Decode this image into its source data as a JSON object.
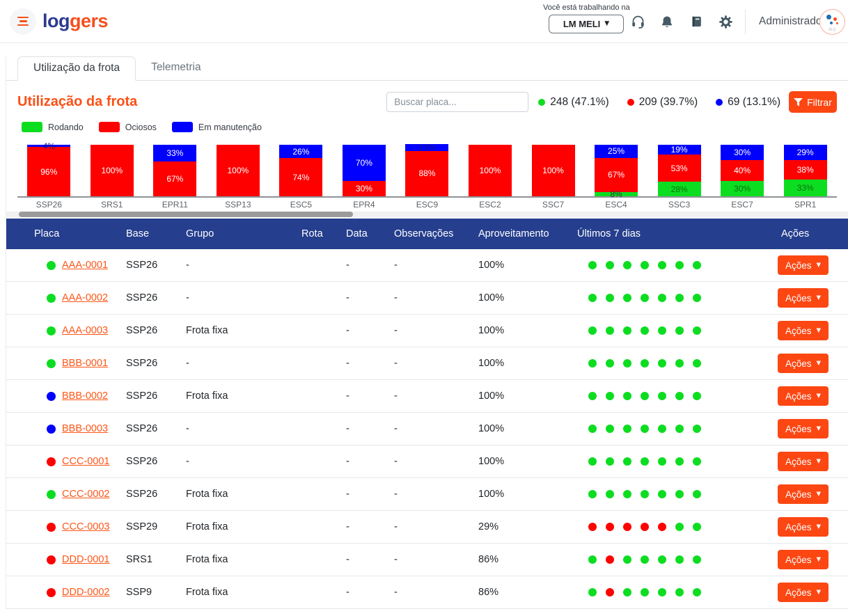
{
  "colors": {
    "green": "#0ddd21",
    "red": "#ff0000",
    "blue": "#0000ff",
    "orange": "#fc4713",
    "navy": "#253e8d"
  },
  "brand": {
    "log": "log",
    "gers": "gers"
  },
  "header": {
    "working_label": "Você está trabalhando na",
    "org": "LM MELI",
    "user": "Administrador",
    "avatar_text": "BLQ",
    "icons": [
      "headset-icon",
      "bell-icon",
      "book-icon",
      "gear-icon"
    ]
  },
  "tabs": [
    {
      "label": "Utilização da frota",
      "active": true
    },
    {
      "label": "Telemetria",
      "active": false
    }
  ],
  "page": {
    "title": "Utilização da frota",
    "search_placeholder": "Buscar placa...",
    "filter_label": "Filtrar",
    "stats": [
      {
        "color": "green",
        "label": "248 (47.1%)"
      },
      {
        "color": "red",
        "label": "209 (39.7%)"
      },
      {
        "color": "blue",
        "label": "69 (13.1%)"
      }
    ]
  },
  "legend": [
    {
      "key": "green",
      "label": "Rodando"
    },
    {
      "key": "red",
      "label": "Ociosos"
    },
    {
      "key": "blue",
      "label": "Em manutenção"
    }
  ],
  "chart_data": {
    "type": "bar",
    "stacked": true,
    "unit": "%",
    "ylim": [
      0,
      100
    ],
    "categories": [
      "SSP26",
      "SRS1",
      "EPR11",
      "SSP13",
      "ESC5",
      "EPR4",
      "ESC9",
      "ESC2",
      "SSC7",
      "ESC4",
      "SSC3",
      "ESC7",
      "SPR1"
    ],
    "series": [
      {
        "name": "Rodando",
        "color_key": "green",
        "values": [
          0,
          0,
          0,
          0,
          0,
          0,
          0,
          0,
          0,
          8,
          28,
          30,
          33
        ]
      },
      {
        "name": "Ociosos",
        "color_key": "red",
        "values": [
          96,
          100,
          67,
          100,
          74,
          30,
          88,
          100,
          100,
          67,
          53,
          40,
          38
        ]
      },
      {
        "name": "Em manutenção",
        "color_key": "blue",
        "values": [
          4,
          0,
          33,
          0,
          26,
          70,
          13,
          0,
          0,
          25,
          19,
          30,
          29
        ]
      }
    ]
  },
  "table": {
    "columns": [
      "Placa",
      "Base",
      "Grupo",
      "Rota",
      "Data",
      "Observações",
      "Aproveitamento",
      "Últimos 7 dias",
      "Ações"
    ],
    "action_label": "Ações",
    "rows": [
      {
        "status": "green",
        "placa": "AAA-0001",
        "base": "SSP26",
        "grupo": "-",
        "rota": "",
        "data": "-",
        "obs": "-",
        "aproveitamento": "100%",
        "dias": [
          "green",
          "green",
          "green",
          "green",
          "green",
          "green",
          "green"
        ]
      },
      {
        "status": "green",
        "placa": "AAA-0002",
        "base": "SSP26",
        "grupo": "-",
        "rota": "",
        "data": "-",
        "obs": "-",
        "aproveitamento": "100%",
        "dias": [
          "green",
          "green",
          "green",
          "green",
          "green",
          "green",
          "green"
        ]
      },
      {
        "status": "green",
        "placa": "AAA-0003",
        "base": "SSP26",
        "grupo": "Frota fixa",
        "rota": "",
        "data": "-",
        "obs": "-",
        "aproveitamento": "100%",
        "dias": [
          "green",
          "green",
          "green",
          "green",
          "green",
          "green",
          "green"
        ]
      },
      {
        "status": "green",
        "placa": "BBB-0001",
        "base": "SSP26",
        "grupo": "-",
        "rota": "",
        "data": "-",
        "obs": "-",
        "aproveitamento": "100%",
        "dias": [
          "green",
          "green",
          "green",
          "green",
          "green",
          "green",
          "green"
        ]
      },
      {
        "status": "blue",
        "placa": "BBB-0002",
        "base": "SSP26",
        "grupo": "Frota fixa",
        "rota": "",
        "data": "-",
        "obs": "-",
        "aproveitamento": "100%",
        "dias": [
          "green",
          "green",
          "green",
          "green",
          "green",
          "green",
          "green"
        ]
      },
      {
        "status": "blue",
        "placa": "BBB-0003",
        "base": "SSP26",
        "grupo": "-",
        "rota": "",
        "data": "-",
        "obs": "-",
        "aproveitamento": "100%",
        "dias": [
          "green",
          "green",
          "green",
          "green",
          "green",
          "green",
          "green"
        ]
      },
      {
        "status": "red",
        "placa": "CCC-0001",
        "base": "SSP26",
        "grupo": "-",
        "rota": "",
        "data": "-",
        "obs": "-",
        "aproveitamento": "100%",
        "dias": [
          "green",
          "green",
          "green",
          "green",
          "green",
          "green",
          "green"
        ]
      },
      {
        "status": "green",
        "placa": "CCC-0002",
        "base": "SSP26",
        "grupo": "Frota fixa",
        "rota": "",
        "data": "-",
        "obs": "-",
        "aproveitamento": "100%",
        "dias": [
          "green",
          "green",
          "green",
          "green",
          "green",
          "green",
          "green"
        ]
      },
      {
        "status": "red",
        "placa": "CCC-0003",
        "base": "SSP29",
        "grupo": "Frota fixa",
        "rota": "",
        "data": "-",
        "obs": "-",
        "aproveitamento": "29%",
        "dias": [
          "red",
          "red",
          "red",
          "red",
          "red",
          "green",
          "green"
        ]
      },
      {
        "status": "red",
        "placa": "DDD-0001",
        "base": "SRS1",
        "grupo": "Frota fixa",
        "rota": "",
        "data": "-",
        "obs": "-",
        "aproveitamento": "86%",
        "dias": [
          "green",
          "red",
          "green",
          "green",
          "green",
          "green",
          "green"
        ]
      },
      {
        "status": "red",
        "placa": "DDD-0002",
        "base": "SSP9",
        "grupo": "Frota fixa",
        "rota": "",
        "data": "-",
        "obs": "-",
        "aproveitamento": "86%",
        "dias": [
          "green",
          "red",
          "green",
          "green",
          "green",
          "green",
          "green"
        ]
      }
    ]
  }
}
